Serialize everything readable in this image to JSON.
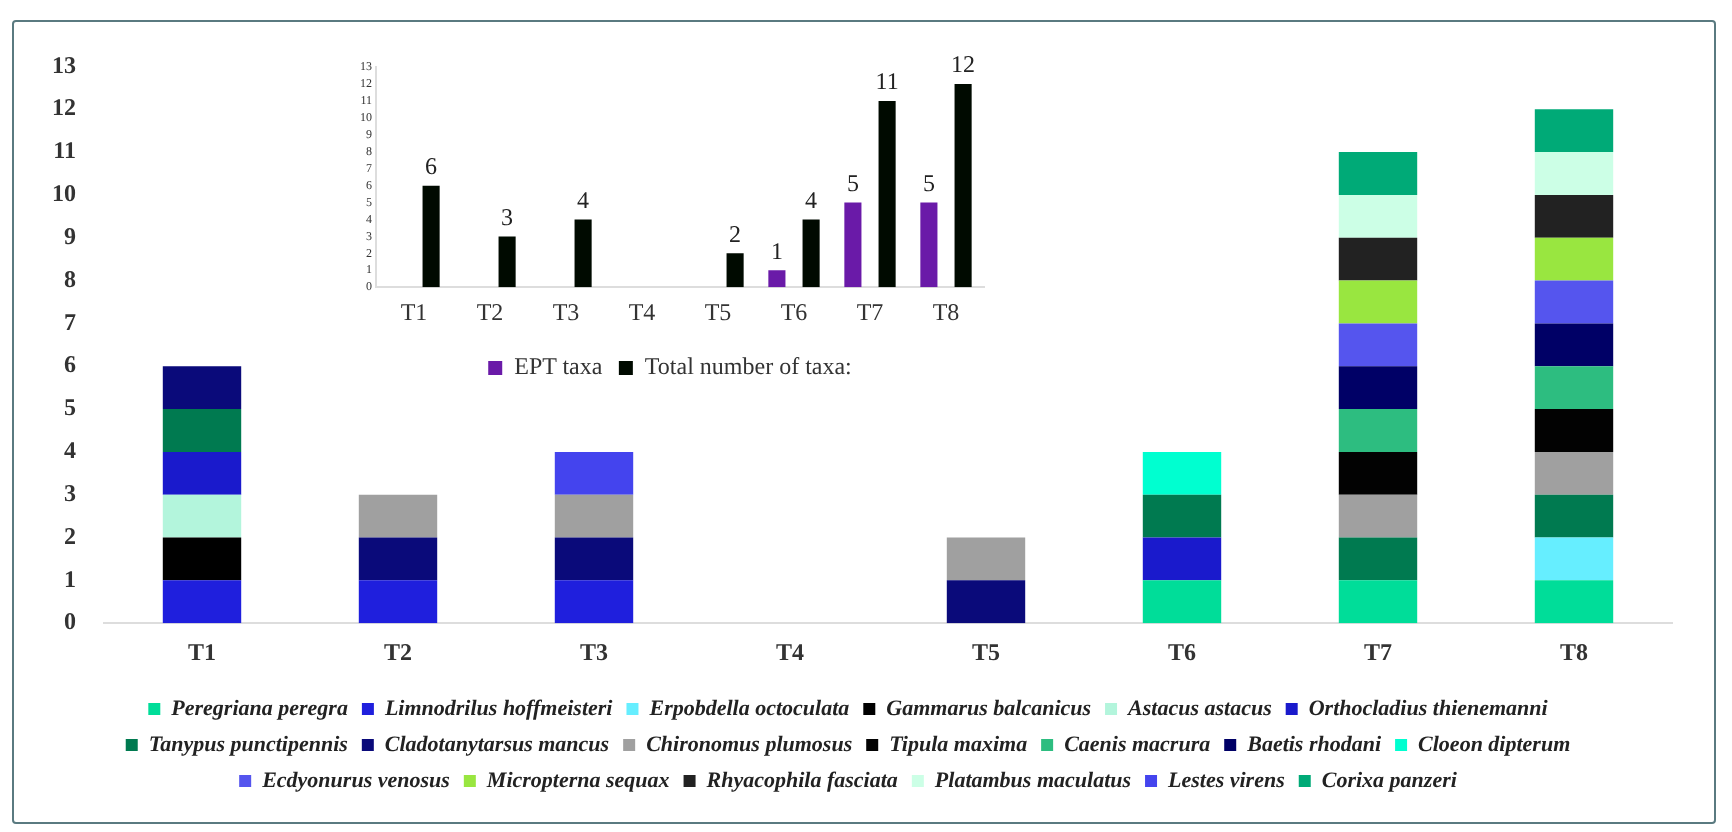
{
  "chart_data": [
    {
      "type": "bar",
      "stacked": true,
      "categories": [
        "T1",
        "T2",
        "T3",
        "T4",
        "T5",
        "T6",
        "T7",
        "T8"
      ],
      "ylim": [
        0,
        13
      ],
      "yticks": [
        0,
        1,
        2,
        3,
        4,
        5,
        6,
        7,
        8,
        9,
        10,
        11,
        12,
        13
      ],
      "grid": false,
      "legend": "bottom",
      "series": [
        {
          "name": "Peregriana peregra",
          "color": "#00dd99",
          "values": [
            null,
            null,
            null,
            null,
            null,
            1,
            1,
            1
          ]
        },
        {
          "name": "Limnodrilus hoffmeisteri",
          "color": "#1f1fdd",
          "values": [
            1,
            1,
            1,
            null,
            null,
            null,
            null,
            null
          ]
        },
        {
          "name": "Erpobdella octoculata",
          "color": "#66eeff",
          "values": [
            null,
            null,
            null,
            null,
            null,
            null,
            null,
            1
          ]
        },
        {
          "name": "Gammarus balcanicus",
          "color": "#000000",
          "values": [
            1,
            null,
            null,
            null,
            null,
            null,
            null,
            null
          ]
        },
        {
          "name": "Astacus astacus",
          "color": "#b3f5dc",
          "values": [
            1,
            null,
            null,
            null,
            null,
            null,
            null,
            null
          ]
        },
        {
          "name": "Orthocladius thienemanni",
          "color": "#1a1acc",
          "values": [
            1,
            null,
            null,
            null,
            null,
            1,
            null,
            null
          ]
        },
        {
          "name": "Tanypus punctipennis",
          "color": "#007a50",
          "values": [
            1,
            null,
            null,
            null,
            null,
            1,
            1,
            1
          ]
        },
        {
          "name": "Cladotanytarsus mancus",
          "color": "#0a0a7a",
          "values": [
            1,
            1,
            1,
            null,
            1,
            null,
            null,
            null
          ]
        },
        {
          "name": "Chironomus plumosus",
          "color": "#a0a0a0",
          "values": [
            null,
            1,
            1,
            null,
            1,
            null,
            1,
            1
          ]
        },
        {
          "name": "Tipula maxima",
          "color": "#020202",
          "values": [
            null,
            null,
            null,
            null,
            null,
            null,
            1,
            1
          ]
        },
        {
          "name": "Caenis macrura",
          "color": "#2dbd80",
          "values": [
            null,
            null,
            null,
            null,
            null,
            null,
            1,
            1
          ]
        },
        {
          "name": "Baetis rhodani",
          "color": "#000066",
          "values": [
            null,
            null,
            null,
            null,
            null,
            null,
            1,
            1
          ]
        },
        {
          "name": "Cloeon dipterum",
          "color": "#00ffd0",
          "values": [
            null,
            null,
            null,
            null,
            null,
            1,
            null,
            null
          ]
        },
        {
          "name": "Ecdyonurus venosus",
          "color": "#5555ee",
          "values": [
            null,
            null,
            null,
            null,
            null,
            null,
            1,
            1
          ]
        },
        {
          "name": "Micropterna sequax",
          "color": "#99e640",
          "values": [
            null,
            null,
            null,
            null,
            null,
            null,
            1,
            1
          ]
        },
        {
          "name": "Rhyacophila fasciata",
          "color": "#222222",
          "values": [
            null,
            null,
            null,
            null,
            null,
            null,
            1,
            1
          ]
        },
        {
          "name": "Platambus maculatus",
          "color": "#ccffe6",
          "values": [
            null,
            null,
            null,
            null,
            null,
            null,
            1,
            1
          ]
        },
        {
          "name": "Lestes virens",
          "color": "#4444ee",
          "values": [
            null,
            null,
            1,
            null,
            null,
            null,
            null,
            null
          ]
        },
        {
          "name": "Corixa panzeri",
          "color": "#00aa77",
          "values": [
            null,
            null,
            null,
            null,
            null,
            null,
            1,
            1
          ]
        }
      ]
    },
    {
      "type": "bar",
      "categories": [
        "T1",
        "T2",
        "T3",
        "T4",
        "T5",
        "T6",
        "T7",
        "T8"
      ],
      "ylim": [
        0,
        13
      ],
      "yticks": [
        0,
        1,
        2,
        3,
        4,
        5,
        6,
        7,
        8,
        9,
        10,
        11,
        12,
        13
      ],
      "grid": false,
      "legend": "bottom",
      "data_labels": true,
      "series": [
        {
          "name": "EPT taxa",
          "color": "#6a1aa8",
          "values": [
            null,
            null,
            null,
            null,
            null,
            1,
            5,
            5
          ]
        },
        {
          "name": "Total number of taxa:",
          "color": "#000a00",
          "values": [
            6,
            3,
            4,
            null,
            2,
            4,
            11,
            12
          ]
        }
      ]
    }
  ]
}
